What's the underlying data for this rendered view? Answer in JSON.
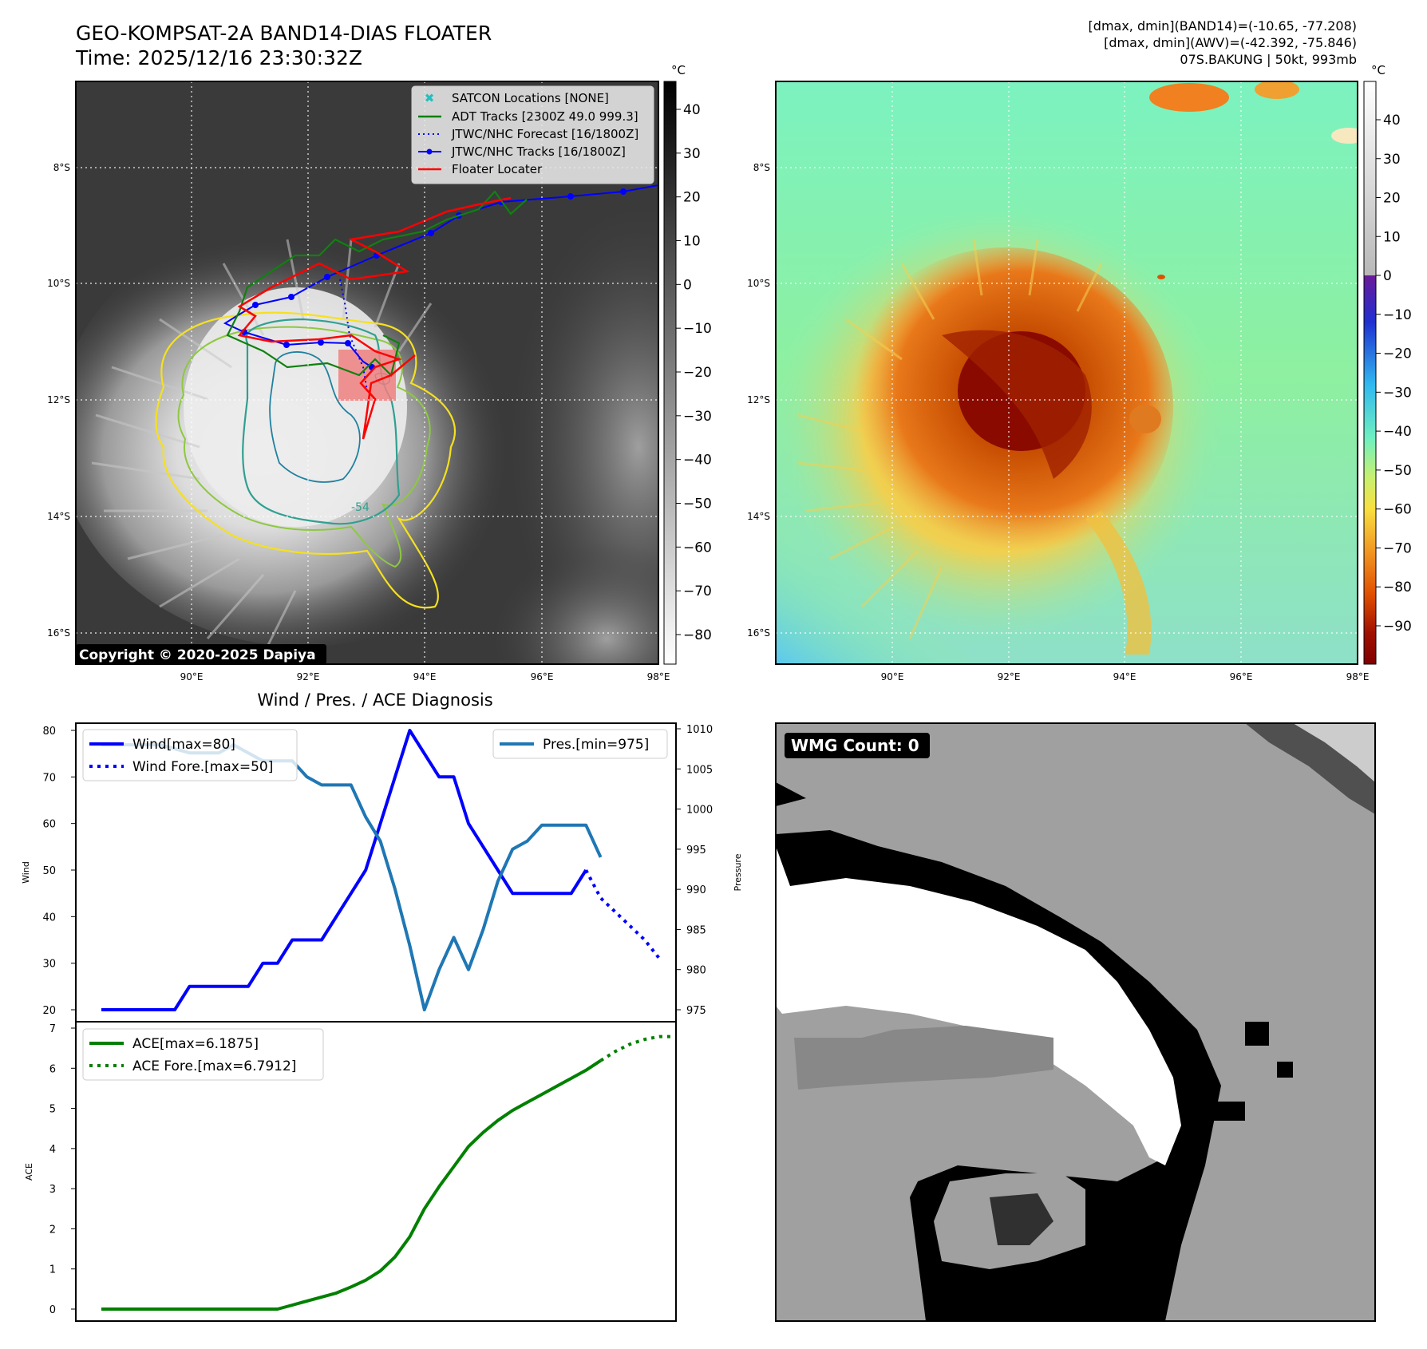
{
  "header": {
    "title_line1": "GEO-KOMPSAT-2A BAND14-DIAS FLOATER",
    "title_line2": "Time: 2025/12/16 23:30:32Z",
    "info_line1": "[dmax, dmin](BAND14)=(-10.65, -77.208)",
    "info_line2": "[dmax, dmin](AWV)=(-42.392, -75.846)",
    "info_line3": "07S.BAKUNG | 50kt, 993mb"
  },
  "map_axes": {
    "lon_labels": [
      "90°E",
      "92°E",
      "94°E",
      "96°E",
      "98°E"
    ],
    "lat_labels": [
      "8°S",
      "10°S",
      "12°S",
      "14°S",
      "16°S"
    ],
    "contour_label": "-54"
  },
  "ir_panel": {
    "colorbar_unit": "°C",
    "colorbar_ticks": [
      "40",
      "30",
      "20",
      "10",
      "0",
      "−10",
      "−20",
      "−30",
      "−40",
      "−50",
      "−60",
      "−70",
      "−80"
    ],
    "copyright": "Copyright © 2020-2025 Dapiya",
    "legend": [
      {
        "label": "SATCON Locations [NONE]",
        "color": "#20c0c0"
      },
      {
        "label": "ADT Tracks [2300Z 49.0 999.3]",
        "color": "#008000"
      },
      {
        "label": "JTWC/NHC Forecast [16/1800Z]",
        "color": "#0000ff"
      },
      {
        "label": "JTWC/NHC Tracks [16/1800Z]",
        "color": "#0000ff"
      },
      {
        "label": "Floater Locater",
        "color": "#ff0000"
      }
    ]
  },
  "color_panel": {
    "colorbar_unit": "°C",
    "colorbar_ticks": [
      "40",
      "30",
      "20",
      "10",
      "0",
      "−10",
      "−20",
      "−30",
      "−40",
      "−50",
      "−60",
      "−70",
      "−80",
      "−90"
    ]
  },
  "wmg_panel": {
    "label": "WMG Count: 0"
  },
  "chart_data": [
    {
      "type": "line",
      "title": "Wind / Pres. / ACE Diagnosis",
      "ylabel": "Wind",
      "y2label": "Pressure",
      "ylim": [
        18,
        83
      ],
      "y2lim": [
        973.5,
        1011.5
      ],
      "yticks": [
        20,
        30,
        40,
        50,
        60,
        70,
        80
      ],
      "y2ticks": [
        975,
        980,
        985,
        990,
        995,
        1000,
        1005,
        1010
      ],
      "series": [
        {
          "name": "Wind[max=80]",
          "color": "#0000ff",
          "style": "solid",
          "values": [
            20,
            20,
            20,
            20,
            20,
            20,
            25,
            25,
            25,
            25,
            25,
            30,
            30,
            35,
            35,
            35,
            40,
            45,
            50,
            60,
            70,
            80,
            75,
            70,
            70,
            60,
            55,
            50,
            45,
            45,
            45,
            45,
            45,
            50
          ]
        },
        {
          "name": "Wind Fore.[max=50]",
          "color": "#0000ff",
          "style": "dotted",
          "values": [
            50,
            44,
            41,
            38,
            35,
            31
          ],
          "start_index": 33
        },
        {
          "name": "Pres.[min=975]",
          "color": "#1f77b4",
          "style": "solid",
          "axis": "right",
          "values": [
            1008,
            1008,
            1008,
            1008,
            1008,
            1007.5,
            1007,
            1007,
            1007,
            1008,
            1007,
            1006,
            1006,
            1006,
            1004,
            1003,
            1003,
            1003,
            999,
            996,
            990,
            983,
            975,
            980,
            984,
            980,
            985,
            991,
            995,
            996,
            998,
            998,
            998,
            998,
            994
          ]
        }
      ]
    },
    {
      "type": "line",
      "ylabel": "ACE",
      "ylim": [
        -0.2,
        7.1
      ],
      "yticks": [
        0,
        1,
        2,
        3,
        4,
        5,
        6,
        7
      ],
      "series": [
        {
          "name": "ACE[max=6.1875]",
          "color": "#008000",
          "style": "solid",
          "values": [
            0,
            0,
            0,
            0,
            0,
            0,
            0,
            0,
            0,
            0,
            0,
            0,
            0,
            0.1,
            0.2,
            0.3,
            0.4,
            0.55,
            0.72,
            0.95,
            1.3,
            1.8,
            2.5,
            3.05,
            3.55,
            4.05,
            4.4,
            4.7,
            4.95,
            5.15,
            5.35,
            5.55,
            5.75,
            5.95,
            6.19
          ]
        },
        {
          "name": "ACE Fore.[max=6.7912]",
          "color": "#008000",
          "style": "dotted",
          "values": [
            6.19,
            6.42,
            6.6,
            6.72,
            6.79,
            6.79
          ],
          "start_index": 34
        }
      ]
    }
  ]
}
